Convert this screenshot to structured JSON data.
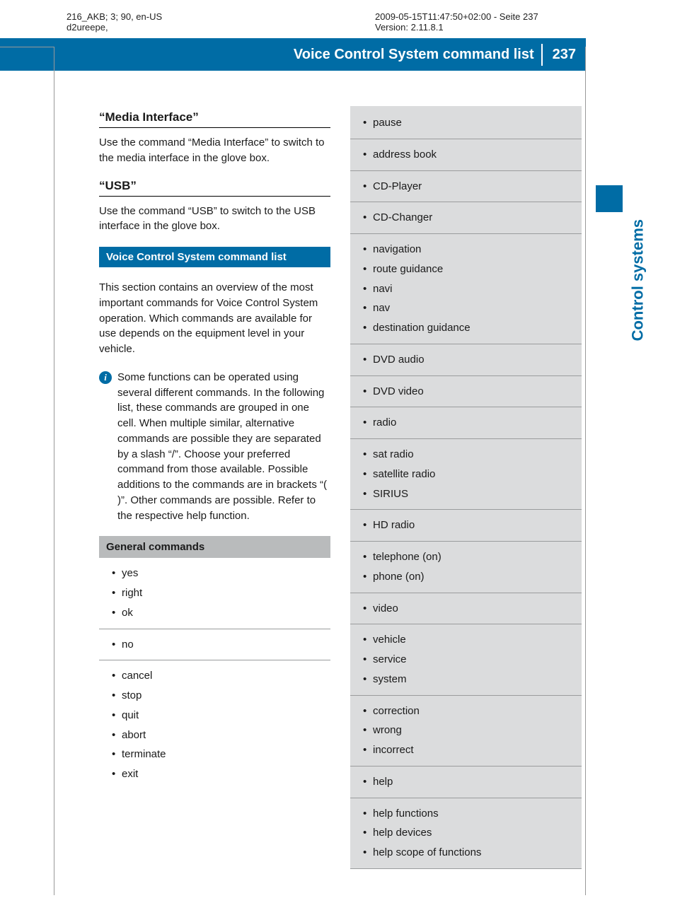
{
  "meta": {
    "left_line1": "216_AKB; 3; 90, en-US",
    "left_line2": "d2ureepe,",
    "right_line1": "2009-05-15T11:47:50+02:00 - Seite 237",
    "right_line2": "Version: 2.11.8.1"
  },
  "header": {
    "title": "Voice Control System command list",
    "page": "237",
    "bar_color": "#006ca5"
  },
  "side": {
    "label": "Control systems",
    "tab_color": "#006ca5",
    "text_color": "#006ca5"
  },
  "left_col": {
    "sec1_title": "“Media Interface”",
    "sec1_body": "Use the command “Media Interface” to switch to the media interface in the glove box.",
    "sec2_title": "“USB”",
    "sec2_body": "Use the command “USB” to switch to the USB interface in the glove box.",
    "blue_bar": "Voice Control System command list",
    "intro": "This section contains an overview of the most important commands for Voice Control System operation. Which commands are available for use depends on the equipment level in your vehicle.",
    "info": "Some functions can be operated using several different commands. In the following list, these commands are grouped in one cell. When multiple similar, alternative commands are possible they are separated by a slash “/”. Choose your preferred command from those available. Possible additions to the commands are in brackets “( )”. Other commands are possible. Refer to the respective help function.",
    "gray_header": "General commands",
    "groups": [
      [
        "yes",
        "right",
        "ok"
      ],
      [
        "no"
      ],
      [
        "cancel",
        "stop",
        "quit",
        "abort",
        "terminate",
        "exit"
      ]
    ]
  },
  "right_col": {
    "groups": [
      [
        "pause"
      ],
      [
        "address book"
      ],
      [
        "CD-Player"
      ],
      [
        "CD-Changer"
      ],
      [
        "navigation",
        "route guidance",
        "navi",
        "nav",
        "destination guidance"
      ],
      [
        "DVD audio"
      ],
      [
        "DVD video"
      ],
      [
        "radio"
      ],
      [
        "sat radio",
        "satellite radio",
        "SIRIUS"
      ],
      [
        "HD radio"
      ],
      [
        "telephone (on)",
        "phone (on)"
      ],
      [
        "video"
      ],
      [
        "vehicle",
        "service",
        "system"
      ],
      [
        "correction",
        "wrong",
        "incorrect"
      ],
      [
        "help"
      ],
      [
        "help functions",
        "help devices",
        "help scope of functions"
      ]
    ]
  },
  "colors": {
    "gray_bar": "#b9bbbc",
    "light_gray_bg": "#dbdcdd",
    "divider": "#9a9c9d",
    "text": "#1a1a1a"
  }
}
